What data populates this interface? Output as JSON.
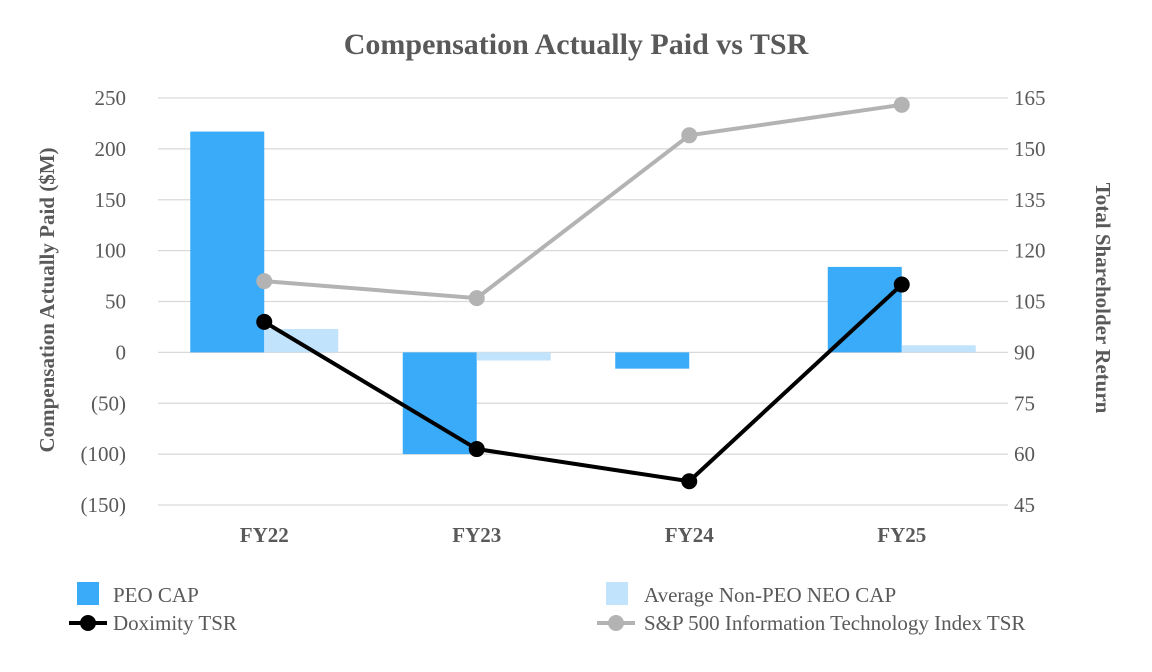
{
  "chart_data": {
    "type": "bar",
    "title": "Compensation Actually Paid vs TSR",
    "categories": [
      "FY22",
      "FY23",
      "FY24",
      "FY25"
    ],
    "ylabel": "Compensation Actually Paid ($M)",
    "y2label": "Total Shareholder Return",
    "ylim": [
      -150,
      250
    ],
    "y2lim": [
      45,
      165
    ],
    "yticks": [
      250,
      200,
      150,
      100,
      50,
      0,
      -50,
      -100,
      -150
    ],
    "ytick_labels": [
      "250",
      "200",
      "150",
      "100",
      "50",
      "0",
      "(50)",
      "(100)",
      "(150)"
    ],
    "y2ticks": [
      165,
      150,
      135,
      120,
      105,
      90,
      75,
      60,
      45
    ],
    "y2tick_labels": [
      "165",
      "150",
      "135",
      "120",
      "105",
      "90",
      "75",
      "60",
      "45"
    ],
    "series": [
      {
        "name": "PEO CAP",
        "kind": "bar",
        "axis": "left",
        "color": "#3aabf9",
        "values": [
          217,
          -100,
          -16,
          84
        ]
      },
      {
        "name": "Average Non-PEO NEO CAP",
        "kind": "bar",
        "axis": "left",
        "color": "#c2e3fc",
        "values": [
          23,
          -8,
          0,
          7
        ]
      },
      {
        "name": "Doximity TSR",
        "kind": "line",
        "axis": "right",
        "color": "#000000",
        "values": [
          99,
          61.5,
          52,
          110
        ]
      },
      {
        "name": "S&P 500 Information Technology Index TSR",
        "kind": "line",
        "axis": "right",
        "color": "#b3b3b3",
        "values": [
          111,
          106,
          154,
          163
        ]
      }
    ],
    "legend": "bottom",
    "grid": true
  }
}
